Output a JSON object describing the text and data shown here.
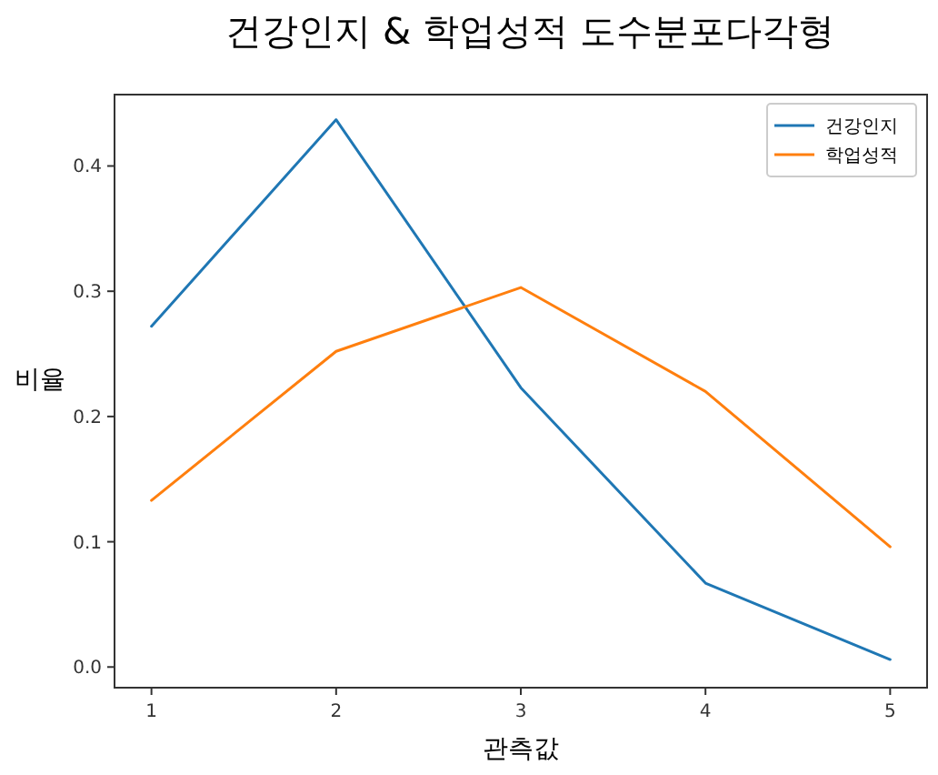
{
  "chart_data": {
    "type": "line",
    "title": "건강인지 & 학업성적 도수분포다각형",
    "xlabel": "관측값",
    "ylabel": "비율",
    "x": [
      1,
      2,
      3,
      4,
      5
    ],
    "series": [
      {
        "name": "건강인지",
        "color": "#1f77b4",
        "values": [
          0.272,
          0.437,
          0.223,
          0.067,
          0.006
        ]
      },
      {
        "name": "학업성적",
        "color": "#ff7f0e",
        "values": [
          0.133,
          0.252,
          0.303,
          0.22,
          0.096
        ]
      }
    ],
    "xlim": [
      0.8,
      5.2
    ],
    "xticks": [
      1,
      2,
      3,
      4,
      5
    ],
    "ylim": [
      -0.0165,
      0.457
    ],
    "yticks": [
      {
        "value": 0,
        "label": "0.0"
      },
      0.1,
      0.2,
      0.3,
      0.4
    ],
    "legend": "top right",
    "grid": false,
    "marker": "none",
    "line_style": "solid"
  }
}
